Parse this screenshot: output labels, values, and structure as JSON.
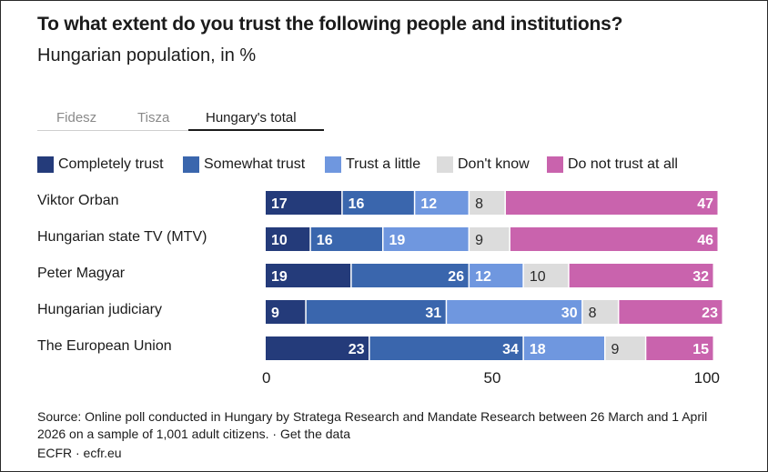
{
  "title": "To what extent do you trust the following people and institutions?",
  "subtitle": "Hungarian population, in %",
  "tabs": [
    {
      "label": "Fidesz",
      "active": false
    },
    {
      "label": "Tisza",
      "active": false
    },
    {
      "label": "Hungary's total",
      "active": true
    }
  ],
  "colors": {
    "completely": "#243b7a",
    "somewhat": "#3a66ad",
    "little": "#6f97df",
    "dontknow": "#dcdcdc",
    "notatall": "#c963ad"
  },
  "chart_data": {
    "type": "bar",
    "orientation": "horizontal",
    "stacked": true,
    "categories": [
      "Viktor Orban",
      "Hungarian state TV (MTV)",
      "Peter Magyar",
      "Hungarian judiciary",
      "The European Union"
    ],
    "series": [
      {
        "name": "Completely trust",
        "color": "#243b7a",
        "values": [
          17,
          10,
          19,
          9,
          23
        ]
      },
      {
        "name": "Somewhat trust",
        "color": "#3a66ad",
        "values": [
          16,
          16,
          26,
          31,
          34
        ]
      },
      {
        "name": "Trust a little",
        "color": "#6f97df",
        "values": [
          12,
          19,
          12,
          30,
          18
        ]
      },
      {
        "name": "Don't know",
        "color": "#dcdcdc",
        "values": [
          8,
          9,
          10,
          8,
          9
        ]
      },
      {
        "name": "Do not trust at all",
        "color": "#c963ad",
        "values": [
          47,
          46,
          32,
          23,
          15
        ]
      }
    ],
    "xlim": [
      0,
      100
    ],
    "xticks": [
      "0",
      "50",
      "100"
    ],
    "legend": "top"
  },
  "footer": {
    "source": "Source: Online poll conducted in Hungary by Stratega Research and Mandate Research between 26 March and 1 April 2026 on a sample of 1,001 adult citizens. · Get the data",
    "credit": "ECFR · ecfr.eu"
  }
}
